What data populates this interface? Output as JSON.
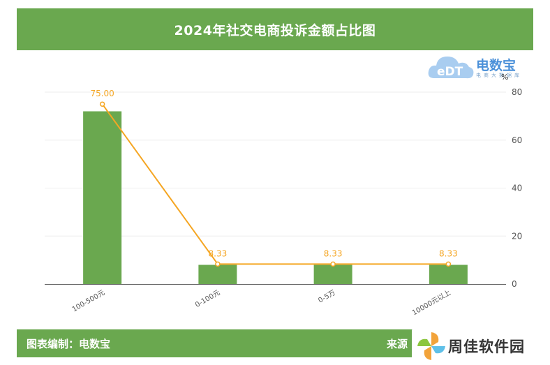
{
  "title": "2024年社交电商投诉金额占比图",
  "logo": {
    "main": "电数宝",
    "sub": "电商大数据库",
    "mark": "eDT"
  },
  "chart_data": {
    "type": "bar",
    "categories": [
      "100-500元",
      "0-100元",
      "0-5万",
      "10000元以上"
    ],
    "series": [
      {
        "type": "bar",
        "values": [
          72,
          8,
          8,
          8
        ]
      },
      {
        "type": "line",
        "values": [
          75.0,
          8.33,
          8.33,
          8.33
        ],
        "labels": [
          "75.00",
          "8.33",
          "8.33",
          "8.33"
        ]
      }
    ],
    "yaxis": {
      "unit": "%",
      "ticks": [
        "80",
        "60",
        "40",
        "20",
        "0"
      ],
      "min": 0,
      "max": 80,
      "position": "right"
    },
    "grid": true,
    "colors": {
      "bar": "#6aa84f",
      "line": "#f5a623",
      "grid": "#eeeeee",
      "axis": "#666666"
    }
  },
  "footer": {
    "left": "图表编制：电数宝",
    "right": "来源"
  },
  "watermark": {
    "text": "周佳软件园"
  }
}
